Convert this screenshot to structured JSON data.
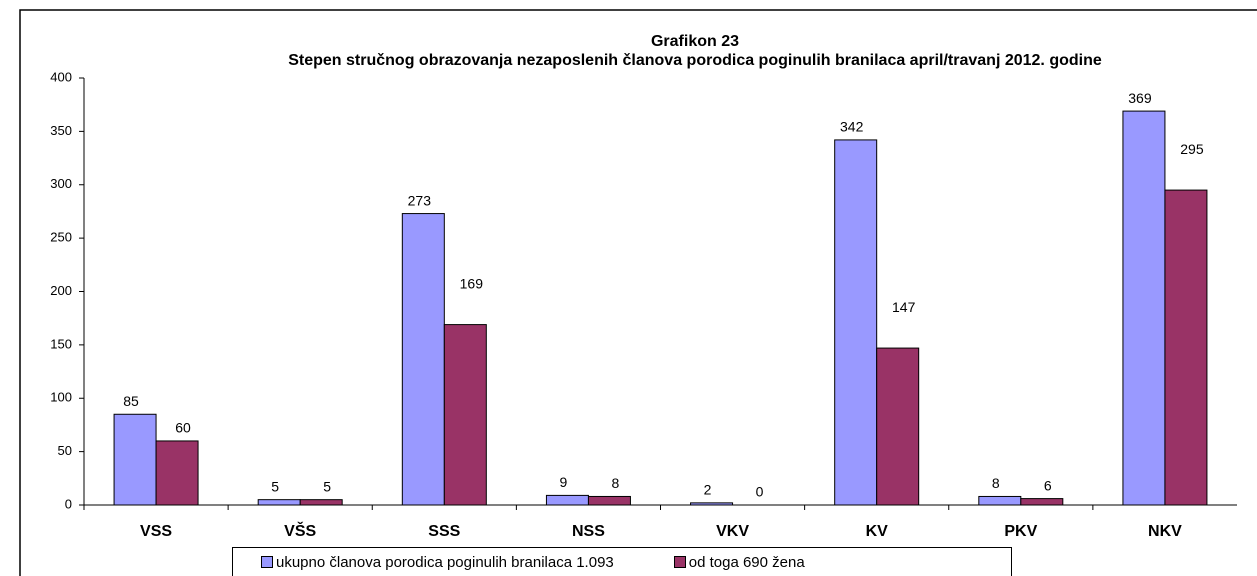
{
  "chart_data": {
    "type": "bar",
    "title": "Grafikon 23",
    "subtitle": "Stepen stručnog obrazovanja nezaposlenih članova porodica poginulih branilaca  april/travanj  2012. godine",
    "categories": [
      "VSS",
      "VŠS",
      "SSS",
      "NSS",
      "VKV",
      "KV",
      "PKV",
      "NKV"
    ],
    "series": [
      {
        "name": "ukupno članova porodica poginulih branilaca 1.093",
        "color": "#9999ff",
        "values": [
          85,
          5,
          273,
          9,
          2,
          342,
          8,
          369
        ]
      },
      {
        "name": "od toga 690 žena",
        "color": "#993366",
        "values": [
          60,
          5,
          169,
          8,
          0,
          147,
          6,
          295
        ]
      }
    ],
    "ylim": [
      0,
      400
    ],
    "yticks": [
      0,
      50,
      100,
      150,
      200,
      250,
      300,
      350,
      400
    ],
    "grid": false,
    "legend": "bottom"
  }
}
